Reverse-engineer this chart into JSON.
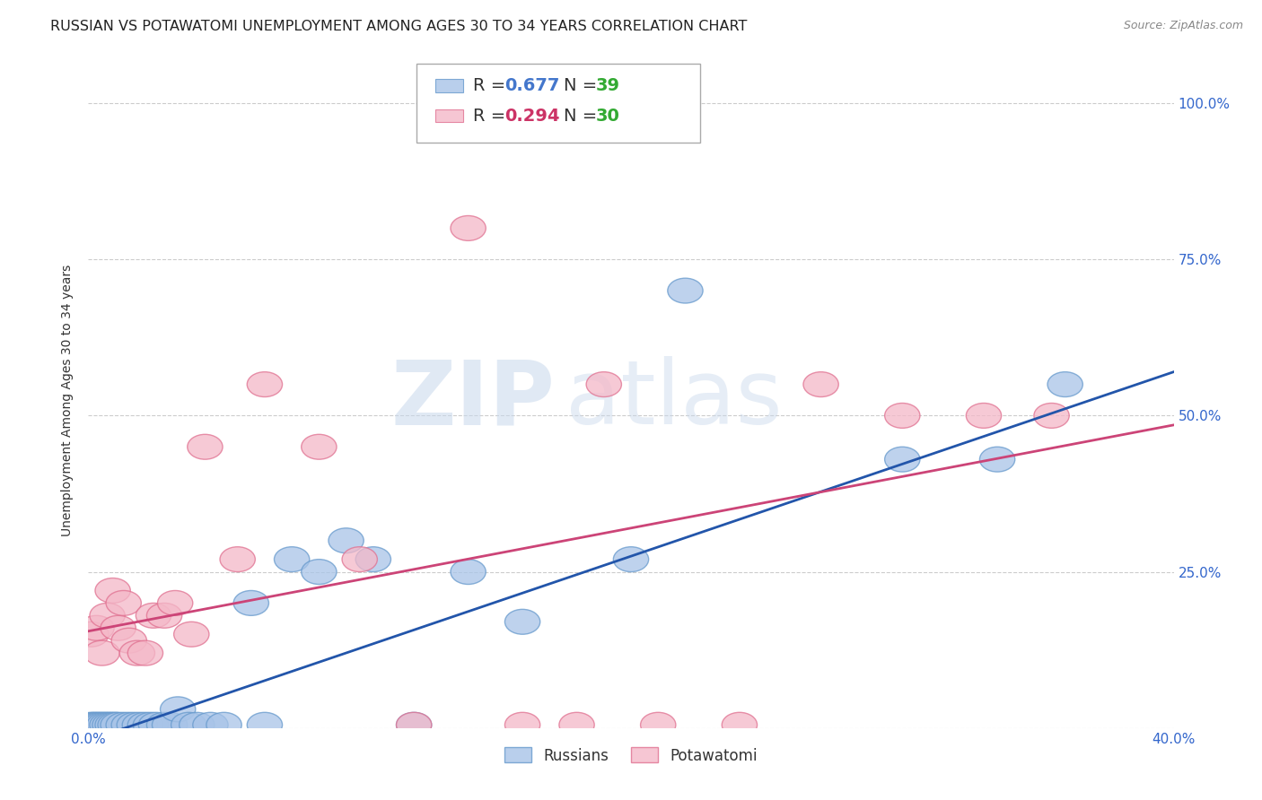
{
  "title": "RUSSIAN VS POTAWATOMI UNEMPLOYMENT AMONG AGES 30 TO 34 YEARS CORRELATION CHART",
  "source": "Source: ZipAtlas.com",
  "ylabel": "Unemployment Among Ages 30 to 34 years",
  "xlim": [
    0.0,
    0.4
  ],
  "ylim": [
    0.0,
    1.05
  ],
  "xticks": [
    0.0,
    0.1,
    0.2,
    0.3,
    0.4
  ],
  "xticklabels": [
    "0.0%",
    "",
    "",
    "",
    "40.0%"
  ],
  "yticks": [
    0.0,
    0.25,
    0.5,
    0.75,
    1.0
  ],
  "yticklabels_right": [
    "",
    "25.0%",
    "50.0%",
    "75.0%",
    "100.0%"
  ],
  "russian_color": "#a8c4e8",
  "russian_edge": "#6699cc",
  "potawatomi_color": "#f4b8c8",
  "potawatomi_edge": "#e07090",
  "russian_line_color": "#2255aa",
  "potawatomi_line_color": "#cc4477",
  "russian_R": 0.677,
  "russian_N": 39,
  "potawatomi_R": 0.294,
  "potawatomi_N": 30,
  "watermark_zip": "ZIP",
  "watermark_atlas": "atlas",
  "background_color": "#ffffff",
  "grid_color": "#cccccc",
  "title_fontsize": 11.5,
  "axis_label_fontsize": 10,
  "tick_fontsize": 11,
  "legend_fontsize": 14,
  "russians_x": [
    0.001,
    0.002,
    0.003,
    0.004,
    0.005,
    0.006,
    0.007,
    0.008,
    0.009,
    0.01,
    0.011,
    0.013,
    0.015,
    0.017,
    0.019,
    0.021,
    0.023,
    0.025,
    0.028,
    0.03,
    0.033,
    0.037,
    0.04,
    0.045,
    0.05,
    0.06,
    0.065,
    0.075,
    0.085,
    0.095,
    0.105,
    0.12,
    0.14,
    0.16,
    0.2,
    0.22,
    0.3,
    0.335,
    0.36
  ],
  "russians_y": [
    0.005,
    0.005,
    0.005,
    0.005,
    0.005,
    0.005,
    0.005,
    0.005,
    0.005,
    0.005,
    0.005,
    0.005,
    0.005,
    0.005,
    0.005,
    0.005,
    0.005,
    0.005,
    0.005,
    0.005,
    0.03,
    0.005,
    0.005,
    0.005,
    0.005,
    0.2,
    0.005,
    0.27,
    0.25,
    0.3,
    0.27,
    0.005,
    0.25,
    0.17,
    0.27,
    0.7,
    0.43,
    0.43,
    0.55
  ],
  "potawatomi_x": [
    0.001,
    0.003,
    0.005,
    0.007,
    0.009,
    0.011,
    0.013,
    0.015,
    0.018,
    0.021,
    0.024,
    0.028,
    0.032,
    0.038,
    0.043,
    0.055,
    0.065,
    0.085,
    0.1,
    0.12,
    0.14,
    0.16,
    0.18,
    0.19,
    0.21,
    0.24,
    0.27,
    0.3,
    0.33,
    0.355
  ],
  "potawatomi_y": [
    0.15,
    0.16,
    0.12,
    0.18,
    0.22,
    0.16,
    0.2,
    0.14,
    0.12,
    0.12,
    0.18,
    0.18,
    0.2,
    0.15,
    0.45,
    0.27,
    0.55,
    0.45,
    0.27,
    0.005,
    0.8,
    0.005,
    0.005,
    0.55,
    0.005,
    0.005,
    0.55,
    0.5,
    0.5,
    0.5
  ],
  "blue_line_x0": 0.0,
  "blue_line_y0": -0.02,
  "blue_line_x1": 0.4,
  "blue_line_y1": 0.57,
  "pink_line_x0": 0.0,
  "pink_line_y0": 0.155,
  "pink_line_x1": 0.4,
  "pink_line_y1": 0.485
}
